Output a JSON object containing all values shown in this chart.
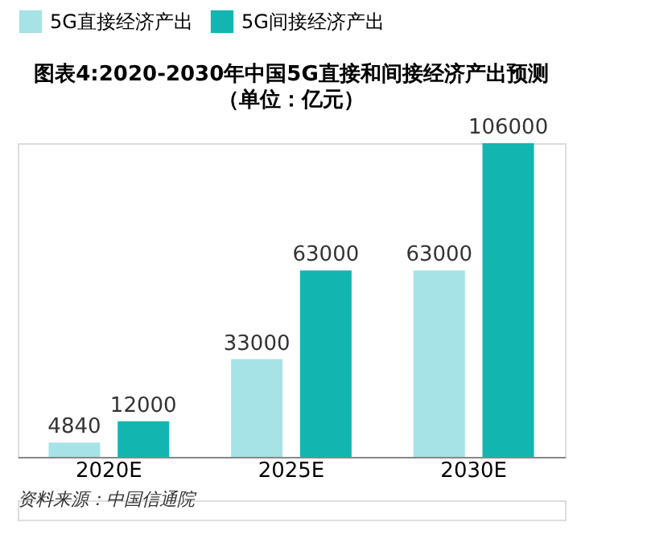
{
  "chart_data": {
    "type": "bar",
    "title": "图表4:2020-2030年中国5G直接和间接经济产出预测",
    "subtitle": "（单位：亿元）",
    "categories": [
      "2020E",
      "2025E",
      "2030E"
    ],
    "series": [
      {
        "name": "5G直接经济产出",
        "color": "#a6e3e6",
        "values": [
          4840,
          33000,
          63000
        ]
      },
      {
        "name": "5G间接经济产出",
        "color": "#13b5b1",
        "values": [
          12000,
          63000,
          106000
        ]
      }
    ],
    "data_labels": true,
    "legend": "top",
    "grid": false,
    "annotations": [
      "资料来源：中国信通院"
    ]
  }
}
